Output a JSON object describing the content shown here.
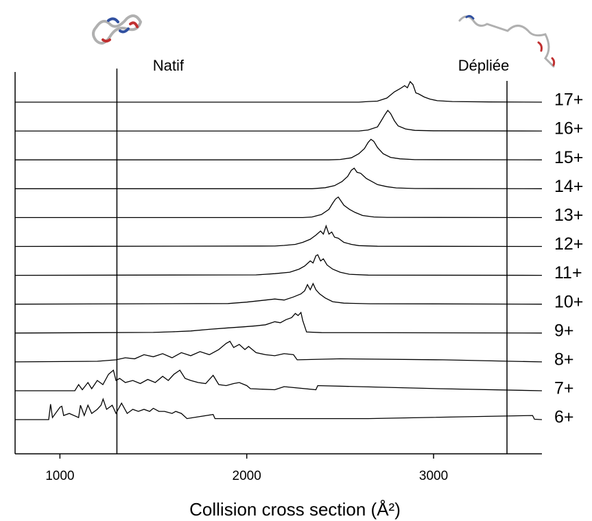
{
  "chart_data": {
    "type": "line",
    "x_label": "Collision cross section (Å²)",
    "xlim": [
      760,
      3580
    ],
    "xticks": [
      1000,
      2000,
      3000
    ],
    "line_color": "#000000",
    "reference_lines": [
      {
        "x": 1305,
        "label": "Natif"
      },
      {
        "x": 3393,
        "label": "Dépliée"
      }
    ],
    "series": [
      {
        "name": "17+",
        "x": [
          760,
          2600,
          2650,
          2700,
          2750,
          2790,
          2820,
          2845,
          2860,
          2875,
          2890,
          2905,
          2920,
          2950,
          2980,
          3020,
          3100,
          3300,
          3580
        ],
        "values": [
          0,
          0,
          0.03,
          0.05,
          0.2,
          0.5,
          0.65,
          0.8,
          0.7,
          1.0,
          0.85,
          0.45,
          0.4,
          0.25,
          0.15,
          0.07,
          0.03,
          0.01,
          0
        ]
      },
      {
        "name": "16+",
        "x": [
          760,
          2600,
          2650,
          2700,
          2720,
          2740,
          2755,
          2770,
          2790,
          2810,
          2850,
          2900,
          3000,
          3580
        ],
        "values": [
          0,
          0,
          0.05,
          0.2,
          0.5,
          0.8,
          1.0,
          0.85,
          0.5,
          0.25,
          0.1,
          0.03,
          0.01,
          0
        ]
      },
      {
        "name": "15+",
        "x": [
          760,
          2440,
          2500,
          2560,
          2600,
          2630,
          2650,
          2665,
          2680,
          2700,
          2730,
          2770,
          2820,
          2900,
          3580
        ],
        "values": [
          0,
          0,
          0.02,
          0.1,
          0.3,
          0.55,
          0.85,
          1.0,
          0.9,
          0.6,
          0.3,
          0.12,
          0.05,
          0.01,
          0
        ]
      },
      {
        "name": "14+",
        "x": [
          760,
          2350,
          2420,
          2470,
          2510,
          2540,
          2560,
          2575,
          2590,
          2610,
          2640,
          2670,
          2700,
          2750,
          2800,
          2900,
          3580
        ],
        "values": [
          0,
          0,
          0.05,
          0.15,
          0.35,
          0.6,
          0.9,
          1.0,
          0.8,
          0.75,
          0.5,
          0.35,
          0.2,
          0.1,
          0.04,
          0.01,
          0
        ]
      },
      {
        "name": "13+",
        "x": [
          760,
          2300,
          2350,
          2400,
          2440,
          2460,
          2475,
          2490,
          2505,
          2520,
          2550,
          2580,
          2620,
          2680,
          2750,
          3580
        ],
        "values": [
          0,
          0,
          0.03,
          0.15,
          0.4,
          0.7,
          0.9,
          1.0,
          0.8,
          0.6,
          0.4,
          0.25,
          0.1,
          0.03,
          0.01,
          0
        ]
      },
      {
        "name": "12+",
        "x": [
          760,
          2150,
          2200,
          2260,
          2300,
          2340,
          2370,
          2395,
          2410,
          2425,
          2440,
          2455,
          2470,
          2490,
          2520,
          2560,
          2600,
          2700,
          3580
        ],
        "values": [
          0,
          0.02,
          0.05,
          0.1,
          0.2,
          0.35,
          0.55,
          0.75,
          0.6,
          1.0,
          0.6,
          0.7,
          0.45,
          0.4,
          0.2,
          0.1,
          0.04,
          0.01,
          0
        ]
      },
      {
        "name": "11+",
        "x": [
          760,
          2050,
          2150,
          2230,
          2280,
          2310,
          2340,
          2355,
          2370,
          2380,
          2395,
          2410,
          2430,
          2460,
          2500,
          2550,
          2650,
          3580
        ],
        "values": [
          0,
          0.02,
          0.08,
          0.15,
          0.3,
          0.45,
          0.7,
          0.6,
          0.95,
          1.0,
          0.7,
          0.8,
          0.5,
          0.3,
          0.15,
          0.05,
          0.01,
          0
        ]
      },
      {
        "name": "10+",
        "x": [
          760,
          1900,
          2000,
          2080,
          2150,
          2200,
          2250,
          2290,
          2310,
          2325,
          2340,
          2355,
          2370,
          2390,
          2420,
          2460,
          2520,
          2660,
          3580
        ],
        "values": [
          0,
          0.03,
          0.1,
          0.18,
          0.25,
          0.2,
          0.35,
          0.5,
          0.65,
          0.95,
          0.7,
          1.0,
          0.7,
          0.5,
          0.3,
          0.12,
          0.05,
          0.02,
          0
        ]
      },
      {
        "name": "9+",
        "x": [
          760,
          1500,
          1600,
          1700,
          1800,
          1900,
          1980,
          2050,
          2100,
          2150,
          2180,
          2210,
          2240,
          2260,
          2275,
          2290,
          2300,
          2320,
          2400,
          3580
        ],
        "values": [
          0,
          0.03,
          0.06,
          0.1,
          0.18,
          0.25,
          0.3,
          0.35,
          0.4,
          0.55,
          0.5,
          0.65,
          0.75,
          0.95,
          0.85,
          1.0,
          0.6,
          0.05,
          0.02,
          0
        ]
      },
      {
        "name": "8+",
        "x": [
          760,
          1200,
          1300,
          1350,
          1400,
          1450,
          1500,
          1550,
          1600,
          1650,
          1700,
          1750,
          1800,
          1850,
          1890,
          1910,
          1930,
          1960,
          1990,
          2010,
          2050,
          2100,
          2150,
          2200,
          2250,
          2270,
          2500,
          3050,
          3580
        ],
        "values": [
          0,
          0.03,
          0.1,
          0.2,
          0.15,
          0.35,
          0.25,
          0.4,
          0.2,
          0.45,
          0.3,
          0.5,
          0.35,
          0.6,
          0.9,
          1.0,
          0.7,
          0.85,
          0.6,
          0.75,
          0.45,
          0.35,
          0.3,
          0.4,
          0.35,
          0.1,
          0.15,
          0.1,
          0
        ]
      },
      {
        "name": "7+",
        "x": [
          760,
          1080,
          1100,
          1120,
          1150,
          1170,
          1200,
          1230,
          1260,
          1286,
          1300,
          1320,
          1350,
          1390,
          1430,
          1470,
          1510,
          1550,
          1580,
          1610,
          1642,
          1670,
          1700,
          1740,
          1780,
          1820,
          1850,
          1890,
          1930,
          1960,
          2000,
          2020,
          2150,
          2200,
          2370,
          2380,
          3030,
          3580
        ],
        "values": [
          0,
          0,
          0.3,
          0.05,
          0.4,
          0.1,
          0.5,
          0.3,
          0.8,
          1.0,
          0.5,
          0.6,
          0.4,
          0.5,
          0.35,
          0.55,
          0.4,
          0.7,
          0.5,
          0.8,
          1.0,
          0.6,
          0.5,
          0.4,
          0.35,
          0.75,
          0.3,
          0.25,
          0.35,
          0.4,
          0.25,
          0.1,
          0.05,
          0.2,
          0.05,
          0.25,
          0.1,
          0
        ]
      },
      {
        "name": "6+",
        "x": [
          760,
          940,
          950,
          960,
          1000,
          1010,
          1020,
          1050,
          1100,
          1110,
          1130,
          1150,
          1170,
          1200,
          1220,
          1231,
          1250,
          1280,
          1300,
          1330,
          1360,
          1390,
          1420,
          1450,
          1480,
          1500,
          1530,
          1560,
          1600,
          1620,
          1650,
          1680,
          1820,
          1830,
          2650,
          3530,
          3540,
          3580
        ],
        "values": [
          0,
          0,
          0.75,
          0.1,
          0.6,
          0.65,
          0.2,
          0.3,
          0.1,
          0.7,
          0.2,
          0.7,
          0.3,
          0.5,
          0.7,
          1.0,
          0.5,
          0.7,
          0.3,
          0.8,
          0.3,
          0.5,
          0.4,
          0.5,
          0.4,
          0.55,
          0.4,
          0.4,
          0.3,
          0.4,
          0.3,
          0.05,
          0.25,
          0.05,
          0.05,
          0.2,
          0.02,
          0
        ]
      }
    ]
  }
}
